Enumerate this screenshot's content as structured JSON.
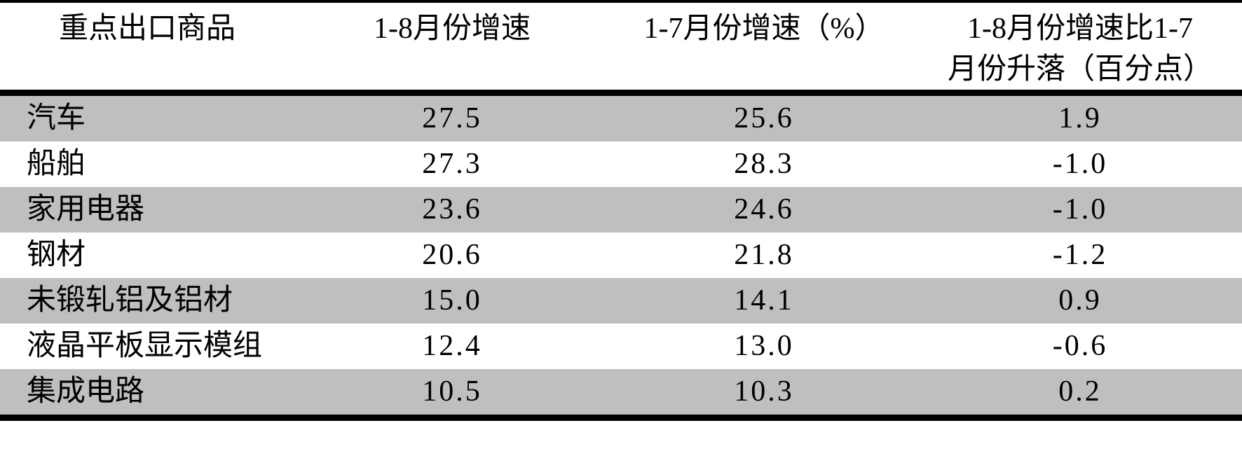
{
  "colors": {
    "row_shade": "#bfbfbf",
    "rule": "#000000",
    "background": "#ffffff",
    "text": "#000000"
  },
  "table": {
    "headers": {
      "commodity": "重点出口商品",
      "growth_1_8": "1-8月份增速",
      "growth_1_7": "1-7月份增速（%）",
      "diff_line1": "1-8月份增速比1-7",
      "diff_line2": "月份升落（百分点）",
      "diff_full": "1-8月份增速比1-7月份升落（百分点）"
    },
    "rows": [
      {
        "name": "汽车",
        "m18": "27.5",
        "m17": "25.6",
        "diff": "1.9"
      },
      {
        "name": "船舶",
        "m18": "27.3",
        "m17": "28.3",
        "diff": "-1.0"
      },
      {
        "name": "家用电器",
        "m18": "23.6",
        "m17": "24.6",
        "diff": "-1.0"
      },
      {
        "name": "钢材",
        "m18": "20.6",
        "m17": "21.8",
        "diff": "-1.2"
      },
      {
        "name": "未锻轧铝及铝材",
        "m18": "15.0",
        "m17": "14.1",
        "diff": "0.9"
      },
      {
        "name": "液晶平板显示模组",
        "m18": "12.4",
        "m17": "13.0",
        "diff": "-0.6"
      },
      {
        "name": "集成电路",
        "m18": "10.5",
        "m17": "10.3",
        "diff": "0.2"
      }
    ]
  },
  "chart_data": {
    "type": "table",
    "columns": [
      "重点出口商品",
      "1-8月份增速",
      "1-7月份增速（%）",
      "1-8月份增速比1-7月份升落（百分点）"
    ],
    "rows": [
      [
        "汽车",
        27.5,
        25.6,
        1.9
      ],
      [
        "船舶",
        27.3,
        28.3,
        -1.0
      ],
      [
        "家用电器",
        23.6,
        24.6,
        -1.0
      ],
      [
        "钢材",
        20.6,
        21.8,
        -1.2
      ],
      [
        "未锻轧铝及铝材",
        15.0,
        14.1,
        0.9
      ],
      [
        "液晶平板显示模组",
        12.4,
        13.0,
        -0.6
      ],
      [
        "集成电路",
        10.5,
        10.3,
        0.2
      ]
    ]
  }
}
